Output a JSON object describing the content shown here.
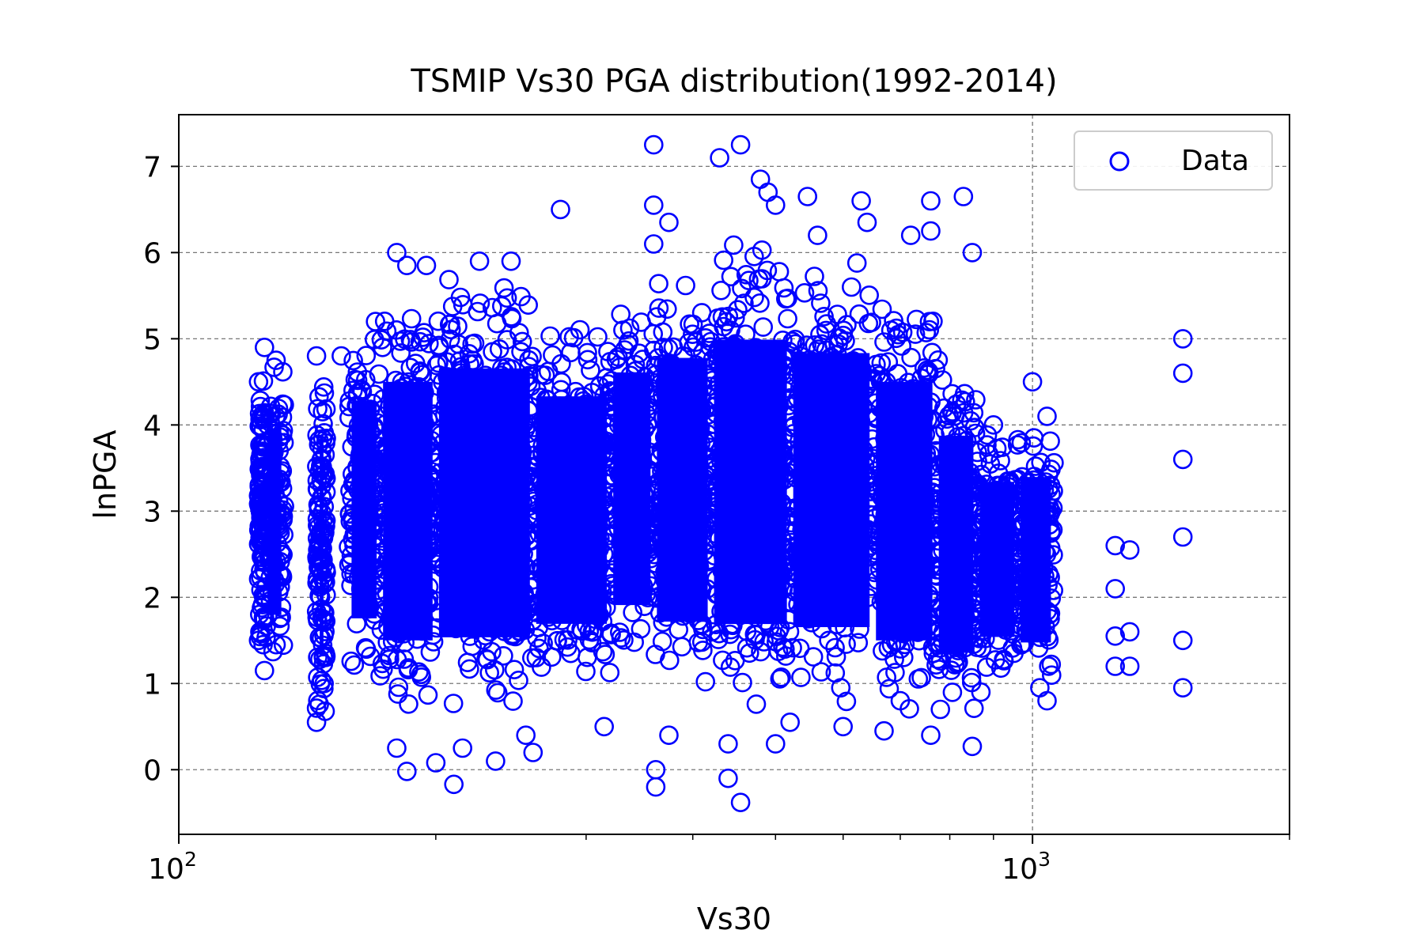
{
  "chart_data": {
    "type": "scatter",
    "title": "TSMIP Vs30 PGA distribution(1992-2014)",
    "xlabel": "Vs30",
    "ylabel": "lnPGA",
    "x_scale": "log",
    "xlim": [
      100,
      2000
    ],
    "ylim": [
      -0.75,
      7.6
    ],
    "x_ticks": [
      {
        "value": 100,
        "base": "10",
        "exp": "2"
      },
      {
        "value": 1000,
        "base": "10",
        "exp": "3"
      }
    ],
    "y_ticks": [
      0,
      1,
      2,
      3,
      4,
      5,
      6,
      7
    ],
    "y_tick_labels": [
      "0",
      "1",
      "2",
      "3",
      "4",
      "5",
      "6",
      "7"
    ],
    "grid": true,
    "legend": {
      "position": "top-right",
      "entries": [
        "Data"
      ]
    },
    "marker": "open-circle",
    "color": "#0000ff",
    "series": [
      {
        "name": "Data",
        "points": [
          [
            124,
            4.5
          ],
          [
            124,
            1.5
          ],
          [
            126,
            4.9
          ],
          [
            126,
            1.15
          ],
          [
            130,
            4.75
          ],
          [
            130,
            1.45
          ],
          [
            145,
            4.8
          ],
          [
            145,
            0.55
          ],
          [
            148,
            1.0
          ],
          [
            155,
            4.8
          ],
          [
            160,
            4.4
          ],
          [
            170,
            5.2
          ],
          [
            180,
            6.0
          ],
          [
            185,
            5.85
          ],
          [
            195,
            5.85
          ],
          [
            180,
            0.25
          ],
          [
            185,
            -0.02
          ],
          [
            200,
            0.08
          ],
          [
            210,
            -0.17
          ],
          [
            215,
            0.25
          ],
          [
            225,
            5.9
          ],
          [
            235,
            0.1
          ],
          [
            245,
            5.9
          ],
          [
            255,
            0.4
          ],
          [
            260,
            0.2
          ],
          [
            280,
            6.5
          ],
          [
            315,
            0.5
          ],
          [
            360,
            7.25
          ],
          [
            360,
            6.55
          ],
          [
            360,
            6.1
          ],
          [
            362,
            -0.2
          ],
          [
            362,
            0.0
          ],
          [
            375,
            6.35
          ],
          [
            375,
            0.4
          ],
          [
            430,
            7.1
          ],
          [
            440,
            0.3
          ],
          [
            440,
            -0.1
          ],
          [
            455,
            7.25
          ],
          [
            455,
            -0.38
          ],
          [
            480,
            6.85
          ],
          [
            490,
            6.7
          ],
          [
            500,
            6.55
          ],
          [
            500,
            0.3
          ],
          [
            520,
            0.55
          ],
          [
            545,
            6.65
          ],
          [
            560,
            6.2
          ],
          [
            600,
            0.5
          ],
          [
            630,
            6.6
          ],
          [
            640,
            6.35
          ],
          [
            670,
            0.45
          ],
          [
            700,
            0.8
          ],
          [
            720,
            6.2
          ],
          [
            760,
            6.6
          ],
          [
            760,
            6.25
          ],
          [
            760,
            0.4
          ],
          [
            780,
            0.7
          ],
          [
            830,
            6.65
          ],
          [
            850,
            6.0
          ],
          [
            850,
            0.27
          ],
          [
            870,
            0.9
          ],
          [
            900,
            4.0
          ],
          [
            1000,
            4.5
          ],
          [
            1020,
            0.95
          ],
          [
            1040,
            0.8
          ],
          [
            1040,
            4.1
          ],
          [
            1050,
            3.3
          ],
          [
            1250,
            2.6
          ],
          [
            1250,
            2.1
          ],
          [
            1250,
            1.55
          ],
          [
            1250,
            1.2
          ],
          [
            1300,
            2.55
          ],
          [
            1300,
            1.6
          ],
          [
            1300,
            1.2
          ],
          [
            1500,
            5.0
          ],
          [
            1500,
            4.6
          ],
          [
            1500,
            0.95
          ],
          [
            1500,
            1.5
          ],
          [
            1500,
            2.7
          ],
          [
            1500,
            3.6
          ]
        ],
        "dense_regions": [
          {
            "x_range": [
              124,
              126
            ],
            "y_range": [
              1.15,
              4.9
            ]
          },
          {
            "x_range": [
              126,
              133
            ],
            "y_range": [
              1.15,
              4.75
            ]
          },
          {
            "x_range": [
              145,
              149
            ],
            "y_range": [
              0.55,
              4.8
            ]
          },
          {
            "x_range": [
              158,
              172
            ],
            "y_range": [
              1.0,
              5.2
            ]
          },
          {
            "x_range": [
              172,
              200
            ],
            "y_range": [
              0.6,
              5.6
            ]
          },
          {
            "x_range": [
              200,
              260
            ],
            "y_range": [
              0.6,
              5.8
            ]
          },
          {
            "x_range": [
              260,
              320
            ],
            "y_range": [
              0.9,
              5.3
            ]
          },
          {
            "x_range": [
              320,
              360
            ],
            "y_range": [
              1.1,
              5.6
            ]
          },
          {
            "x_range": [
              360,
              420
            ],
            "y_range": [
              0.8,
              5.9
            ]
          },
          {
            "x_range": [
              420,
              520
            ],
            "y_range": [
              0.7,
              6.2
            ]
          },
          {
            "x_range": [
              520,
              650
            ],
            "y_range": [
              0.7,
              6.0
            ]
          },
          {
            "x_range": [
              650,
              770
            ],
            "y_range": [
              0.6,
              5.6
            ]
          },
          {
            "x_range": [
              770,
              860
            ],
            "y_range": [
              0.6,
              4.8
            ]
          },
          {
            "x_range": [
              860,
              960
            ],
            "y_range": [
              1.0,
              4.0
            ]
          },
          {
            "x_range": [
              960,
              1060
            ],
            "y_range": [
              0.9,
              4.1
            ]
          }
        ]
      }
    ]
  }
}
